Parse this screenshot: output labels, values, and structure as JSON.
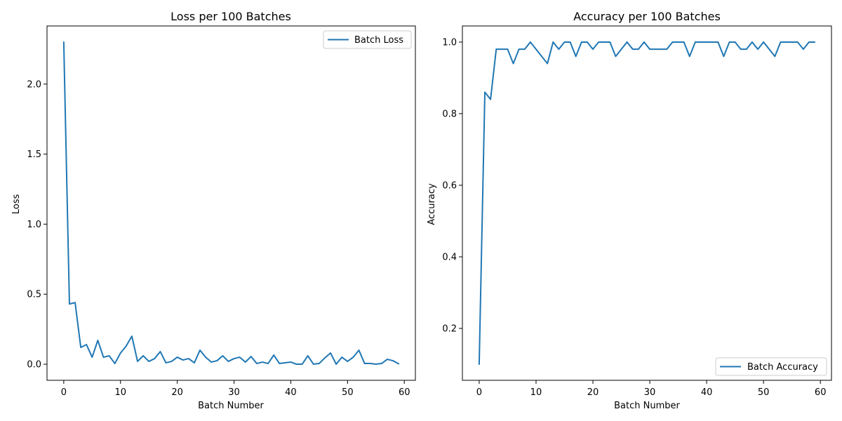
{
  "chart_data": [
    {
      "type": "line",
      "title": "Loss per 100 Batches",
      "xlabel": "Batch Number",
      "ylabel": "Loss",
      "xlim": [
        -2.95,
        61.95
      ],
      "ylim": [
        -0.115,
        2.415
      ],
      "xticks": [
        0,
        10,
        20,
        30,
        40,
        50,
        60
      ],
      "yticks": [
        0.0,
        0.5,
        1.0,
        1.5,
        2.0
      ],
      "ytick_labels": [
        "0.0",
        "0.5",
        "1.0",
        "1.5",
        "2.0"
      ],
      "grid": false,
      "legend": "upper right",
      "color": "#1f77b4",
      "series": [
        {
          "name": "Batch Loss",
          "x": [
            0,
            1,
            2,
            3,
            4,
            5,
            6,
            7,
            8,
            9,
            10,
            11,
            12,
            13,
            14,
            15,
            16,
            17,
            18,
            19,
            20,
            21,
            22,
            23,
            24,
            25,
            26,
            27,
            28,
            29,
            30,
            31,
            32,
            33,
            34,
            35,
            36,
            37,
            38,
            39,
            40,
            41,
            42,
            43,
            44,
            45,
            46,
            47,
            48,
            49,
            50,
            51,
            52,
            53,
            54,
            55,
            56,
            57,
            58,
            59
          ],
          "values": [
            2.3,
            0.43,
            0.44,
            0.12,
            0.14,
            0.05,
            0.17,
            0.05,
            0.06,
            0.005,
            0.08,
            0.13,
            0.2,
            0.02,
            0.06,
            0.02,
            0.04,
            0.09,
            0.01,
            0.02,
            0.05,
            0.03,
            0.04,
            0.01,
            0.1,
            0.05,
            0.015,
            0.025,
            0.06,
            0.02,
            0.04,
            0.05,
            0.015,
            0.055,
            0.005,
            0.015,
            0.005,
            0.065,
            0.005,
            0.01,
            0.015,
            0.0,
            0.0,
            0.06,
            0.0,
            0.005,
            0.045,
            0.08,
            0.0,
            0.05,
            0.02,
            0.05,
            0.1,
            0.005,
            0.005,
            0.0,
            0.005,
            0.035,
            0.025,
            0.003
          ]
        }
      ]
    },
    {
      "type": "line",
      "title": "Accuracy per 100 Batches",
      "xlabel": "Batch Number",
      "ylabel": "Accuracy",
      "xlim": [
        -2.95,
        61.95
      ],
      "ylim": [
        0.055,
        1.045
      ],
      "xticks": [
        0,
        10,
        20,
        30,
        40,
        50,
        60
      ],
      "yticks": [
        0.2,
        0.4,
        0.6,
        0.8,
        1.0
      ],
      "ytick_labels": [
        "0.2",
        "0.4",
        "0.6",
        "0.8",
        "1.0"
      ],
      "grid": false,
      "legend": "lower right",
      "color": "#1f77b4",
      "series": [
        {
          "name": "Batch Accuracy",
          "x": [
            0,
            1,
            2,
            3,
            4,
            5,
            6,
            7,
            8,
            9,
            10,
            11,
            12,
            13,
            14,
            15,
            16,
            17,
            18,
            19,
            20,
            21,
            22,
            23,
            24,
            25,
            26,
            27,
            28,
            29,
            30,
            31,
            32,
            33,
            34,
            35,
            36,
            37,
            38,
            39,
            40,
            41,
            42,
            43,
            44,
            45,
            46,
            47,
            48,
            49,
            50,
            51,
            52,
            53,
            54,
            55,
            56,
            57,
            58,
            59
          ],
          "values": [
            0.1,
            0.86,
            0.84,
            0.98,
            0.98,
            0.98,
            0.94,
            0.98,
            0.98,
            1.0,
            0.98,
            0.96,
            0.94,
            1.0,
            0.98,
            1.0,
            1.0,
            0.96,
            1.0,
            1.0,
            0.98,
            1.0,
            1.0,
            1.0,
            0.96,
            0.98,
            1.0,
            0.98,
            0.98,
            1.0,
            0.98,
            0.98,
            0.98,
            0.98,
            1.0,
            1.0,
            1.0,
            0.96,
            1.0,
            1.0,
            1.0,
            1.0,
            1.0,
            0.96,
            1.0,
            1.0,
            0.98,
            0.98,
            1.0,
            0.98,
            1.0,
            0.98,
            0.96,
            1.0,
            1.0,
            1.0,
            1.0,
            0.98,
            1.0,
            1.0
          ]
        }
      ]
    }
  ]
}
